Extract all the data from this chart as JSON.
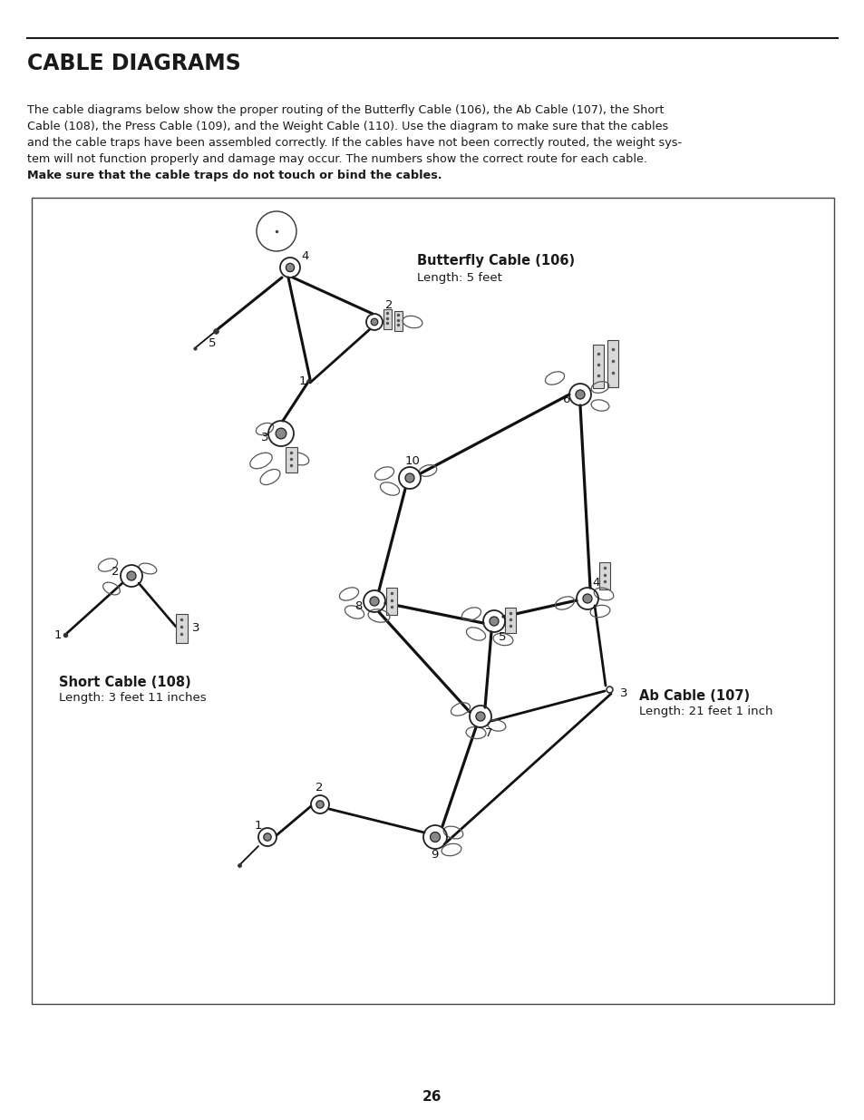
{
  "title": "CABLE DIAGRAMS",
  "page_number": "26",
  "line_color": "#1a1a1a",
  "background_color": "#ffffff",
  "box_border_color": "#444444",
  "butterfly_cable_label": "Butterfly Cable (106)",
  "butterfly_cable_length": "Length: 5 feet",
  "ab_cable_label": "Ab Cable (107)",
  "ab_cable_length": "Length: 21 feet 1 inch",
  "short_cable_label": "Short Cable (108)",
  "short_cable_length": "Length: 3 feet 11 inches",
  "para_line1": "The cable diagrams below show the proper routing of the Butterfly Cable (106), the Ab Cable (107), the Short",
  "para_line2": "Cable (108), the Press Cable (109), and the Weight Cable (110). Use the diagram to make sure that the cables",
  "para_line3": "and the cable traps have been assembled correctly. If the cables have not been correctly routed, the weight sys-",
  "para_line4": "tem will not function properly and damage may occur. The numbers show the correct route for each cable. ",
  "para_bold": "Make sure that the cable traps do not touch or bind the cables."
}
